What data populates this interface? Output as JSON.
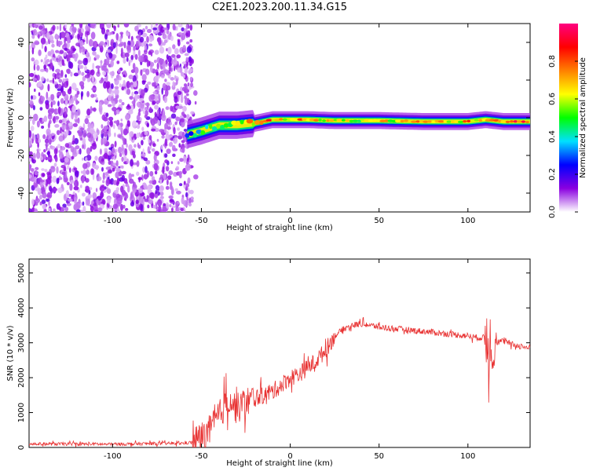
{
  "title": "C2E1.2023.200.11.34.G15",
  "chart_data": [
    {
      "type": "heatmap",
      "title": "C2E1.2023.200.11.34.G15",
      "xlabel": "Height of straight line (km)",
      "ylabel": "Frequency (Hz)",
      "xlim": [
        -147,
        135
      ],
      "ylim": [
        -50,
        50
      ],
      "xticks": [
        -100,
        -50,
        0,
        50,
        100
      ],
      "yticks": [
        -40,
        -20,
        0,
        20,
        40
      ],
      "colorbar": {
        "label": "Normalized spectral amplitude",
        "range": [
          0.0,
          1.0
        ],
        "ticks": [
          0.0,
          0.2,
          0.4,
          0.6,
          0.8
        ],
        "tick_labels": [
          "0.0",
          "0.2",
          "0.4",
          "0.6",
          "0.8"
        ],
        "colors": [
          "#ffffff",
          "#8a00e0",
          "#0000ff",
          "#00e0ff",
          "#00ff00",
          "#ffff00",
          "#ff8000",
          "#ff0000",
          "#ff0080"
        ]
      },
      "noise_region": {
        "x_range": [
          -147,
          -55
        ],
        "freq_range": [
          -50,
          50
        ],
        "amplitude": 0.1
      },
      "ridge": [
        {
          "x": -58,
          "freq": -9,
          "amp": 0.3
        },
        {
          "x": -50,
          "freq": -7,
          "amp": 0.45
        },
        {
          "x": -40,
          "freq": -4,
          "amp": 0.5
        },
        {
          "x": -30,
          "freq": -4,
          "amp": 0.6
        },
        {
          "x": -20,
          "freq": -3,
          "amp": 0.75
        },
        {
          "x": -10,
          "freq": -1,
          "amp": 0.8
        },
        {
          "x": 0,
          "freq": -1,
          "amp": 0.7
        },
        {
          "x": 10,
          "freq": -1,
          "amp": 0.75
        },
        {
          "x": 25,
          "freq": -1.5,
          "amp": 0.6
        },
        {
          "x": 50,
          "freq": -1.5,
          "amp": 0.65
        },
        {
          "x": 75,
          "freq": -2,
          "amp": 0.7
        },
        {
          "x": 100,
          "freq": -2,
          "amp": 0.75
        },
        {
          "x": 110,
          "freq": -1,
          "amp": 0.6
        },
        {
          "x": 120,
          "freq": -2,
          "amp": 0.85
        },
        {
          "x": 135,
          "freq": -2,
          "amp": 0.9
        }
      ]
    },
    {
      "type": "line",
      "xlabel": "Height of straight line (km)",
      "ylabel": "SNR (10 * v/v)",
      "xlim": [
        -147,
        135
      ],
      "ylim": [
        0,
        5400
      ],
      "xticks": [
        -100,
        -50,
        0,
        50,
        100
      ],
      "yticks": [
        0,
        1000,
        2000,
        3000,
        4000,
        5000
      ],
      "series": [
        {
          "name": "SNR",
          "color": "#e83232",
          "x": [
            -147,
            -120,
            -100,
            -80,
            -60,
            -55,
            -50,
            -45,
            -40,
            -35,
            -30,
            -25,
            -20,
            -15,
            -10,
            -5,
            0,
            5,
            10,
            15,
            20,
            25,
            30,
            35,
            40,
            45,
            50,
            60,
            70,
            80,
            90,
            100,
            105,
            110,
            113,
            115,
            120,
            125,
            130,
            135
          ],
          "values": [
            100,
            100,
            90,
            110,
            120,
            150,
            300,
            500,
            900,
            1400,
            1100,
            1300,
            1400,
            1500,
            1600,
            1800,
            2000,
            2100,
            2300,
            2500,
            2800,
            3200,
            3400,
            3500,
            3550,
            3500,
            3450,
            3400,
            3350,
            3300,
            3250,
            3200,
            3150,
            3150,
            3000,
            3000,
            3050,
            2950,
            2900,
            2850
          ]
        }
      ]
    }
  ]
}
